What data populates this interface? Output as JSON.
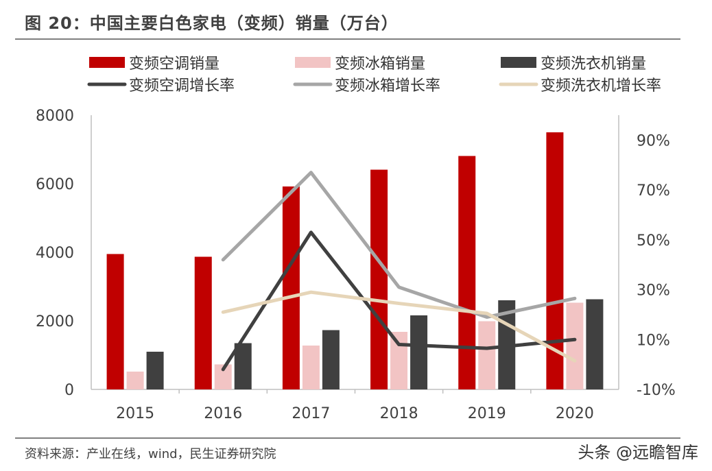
{
  "title": "图 20：中国主要白色家电（变频）销量（万台）",
  "source": "资料来源：产业在线，wind，民生证券研究院",
  "watermark": "头条 @远瞻智库",
  "chart_data": {
    "type": "bar",
    "categories": [
      "2015",
      "2016",
      "2017",
      "2018",
      "2019",
      "2020"
    ],
    "series": [
      {
        "name": "变频空调销量",
        "kind": "bar",
        "axis": "left",
        "color": "#c00000",
        "values": [
          3950,
          3870,
          5920,
          6410,
          6810,
          7500
        ]
      },
      {
        "name": "变频冰箱销量",
        "kind": "bar",
        "axis": "left",
        "color": "#f2c4c4",
        "values": [
          520,
          730,
          1280,
          1680,
          1990,
          2530
        ]
      },
      {
        "name": "变频洗衣机销量",
        "kind": "bar",
        "axis": "left",
        "color": "#404040",
        "values": [
          1100,
          1350,
          1730,
          2160,
          2600,
          2630
        ]
      },
      {
        "name": "变频空调增长率",
        "kind": "line",
        "axis": "right",
        "color": "#404040",
        "values": [
          null,
          -2,
          53,
          8,
          6.5,
          10
        ]
      },
      {
        "name": "变频冰箱增长率",
        "kind": "line",
        "axis": "right",
        "color": "#a6a6a6",
        "values": [
          null,
          42,
          77,
          31,
          19,
          26.5
        ]
      },
      {
        "name": "变频洗衣机增长率",
        "kind": "line",
        "axis": "right",
        "color": "#e6d5b8",
        "values": [
          null,
          21,
          29,
          24.5,
          20.5,
          1.5
        ]
      }
    ],
    "yleft": {
      "min": 0,
      "max": 8000,
      "ticks": [
        "0",
        "2000",
        "4000",
        "6000",
        "8000"
      ]
    },
    "yright": {
      "min": -10,
      "max": 100,
      "ticks": [
        "-10%",
        "10%",
        "30%",
        "50%",
        "70%",
        "90%"
      ]
    },
    "legend_position": "top",
    "grid": false
  }
}
